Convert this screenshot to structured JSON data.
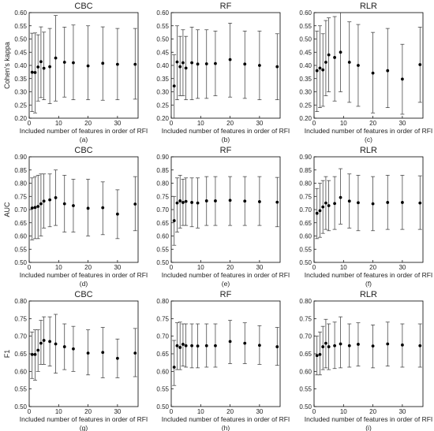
{
  "figure": {
    "panel_titles": [
      "CBC",
      "RF",
      "RLR"
    ],
    "xlabel": "Included number of features in order of RFI",
    "row_ylabels": [
      "Cohen's kappa",
      "AUC",
      "F1"
    ],
    "sublabels": [
      "(a)",
      "(b)",
      "(c)",
      "(d)",
      "(e)",
      "(f)",
      "(g)",
      "(h)",
      "(i)"
    ],
    "colors": {
      "marker": "#000000",
      "errorbar": "#333333",
      "axis": "#000000"
    }
  },
  "chart_data": [
    {
      "type": "scatter",
      "title": "CBC",
      "xlabel": "Included number of features in order of RFI",
      "ylabel": "Cohen's kappa",
      "sublabel": "(a)",
      "xlim": [
        0,
        37
      ],
      "ylim": [
        0.2,
        0.6
      ],
      "xticks": [
        0,
        10,
        20,
        30
      ],
      "xtick_labels": [
        "0",
        "10",
        "20",
        "30"
      ],
      "yticks": [
        0.2,
        0.25,
        0.3,
        0.35,
        0.4,
        0.45,
        0.5,
        0.55,
        0.6
      ],
      "ytick_labels": [
        "0.20",
        "0.25",
        "0.30",
        "0.35",
        "0.40",
        "0.45",
        "0.50",
        "0.55",
        "0.60"
      ],
      "x": [
        1,
        2,
        3,
        4,
        5,
        7,
        9,
        12,
        15,
        20,
        25,
        30,
        36
      ],
      "y": [
        0.374,
        0.373,
        0.394,
        0.414,
        0.389,
        0.395,
        0.428,
        0.412,
        0.41,
        0.398,
        0.408,
        0.404,
        0.404
      ],
      "lower": [
        0.225,
        0.22,
        0.265,
        0.278,
        0.27,
        0.255,
        0.265,
        0.28,
        0.27,
        0.27,
        0.268,
        0.27,
        0.272
      ],
      "upper": [
        0.522,
        0.523,
        0.516,
        0.546,
        0.526,
        0.54,
        0.589,
        0.545,
        0.553,
        0.55,
        0.546,
        0.54,
        0.54
      ]
    },
    {
      "type": "scatter",
      "title": "RF",
      "xlabel": "Included number of features in order of RFI",
      "ylabel": "",
      "sublabel": "(b)",
      "xlim": [
        0,
        37
      ],
      "ylim": [
        0.2,
        0.6
      ],
      "xticks": [
        0,
        10,
        20,
        30
      ],
      "xtick_labels": [
        "0",
        "10",
        "20",
        "30"
      ],
      "yticks": [
        0.2,
        0.25,
        0.3,
        0.35,
        0.4,
        0.45,
        0.5,
        0.55,
        0.6
      ],
      "ytick_labels": [
        "0.20",
        "0.25",
        "0.30",
        "0.35",
        "0.40",
        "0.45",
        "0.50",
        "0.55",
        "0.60"
      ],
      "x": [
        1,
        2,
        3,
        4,
        5,
        7,
        9,
        12,
        15,
        20,
        25,
        30,
        36
      ],
      "y": [
        0.322,
        0.413,
        0.395,
        0.41,
        0.39,
        0.41,
        0.405,
        0.406,
        0.407,
        0.422,
        0.405,
        0.4,
        0.395
      ],
      "lower": [
        0.2,
        0.27,
        0.285,
        0.285,
        0.27,
        0.27,
        0.275,
        0.275,
        0.285,
        0.28,
        0.275,
        0.27,
        0.27
      ],
      "upper": [
        0.44,
        0.55,
        0.51,
        0.535,
        0.51,
        0.545,
        0.535,
        0.535,
        0.53,
        0.56,
        0.53,
        0.53,
        0.52
      ]
    },
    {
      "type": "scatter",
      "title": "RLR",
      "xlabel": "Included number of features in order of RFI",
      "ylabel": "",
      "sublabel": "(c)",
      "xlim": [
        0,
        37
      ],
      "ylim": [
        0.2,
        0.6
      ],
      "xticks": [
        0,
        10,
        20,
        30
      ],
      "xtick_labels": [
        "0",
        "10",
        "20",
        "30"
      ],
      "yticks": [
        0.2,
        0.25,
        0.3,
        0.35,
        0.4,
        0.45,
        0.5,
        0.55,
        0.6
      ],
      "ytick_labels": [
        "0.20",
        "0.25",
        "0.30",
        "0.35",
        "0.40",
        "0.45",
        "0.50",
        "0.55",
        "0.60"
      ],
      "x": [
        1,
        2,
        3,
        4,
        5,
        7,
        9,
        12,
        15,
        20,
        25,
        30,
        36
      ],
      "y": [
        0.38,
        0.39,
        0.383,
        0.412,
        0.44,
        0.43,
        0.45,
        0.412,
        0.4,
        0.371,
        0.38,
        0.348,
        0.403
      ],
      "lower": [
        0.225,
        0.24,
        0.245,
        0.285,
        0.3,
        0.265,
        0.3,
        0.26,
        0.245,
        0.22,
        0.24,
        0.215,
        0.26
      ],
      "upper": [
        0.53,
        0.55,
        0.52,
        0.57,
        0.58,
        0.585,
        0.6,
        0.565,
        0.555,
        0.525,
        0.54,
        0.48,
        0.545
      ]
    },
    {
      "type": "scatter",
      "title": "CBC",
      "xlabel": "Included number of features in order of RFI",
      "ylabel": "AUC",
      "sublabel": "(d)",
      "xlim": [
        0,
        37
      ],
      "ylim": [
        0.5,
        0.9
      ],
      "xticks": [
        0,
        10,
        20,
        30
      ],
      "xtick_labels": [
        "0",
        "10",
        "20",
        "30"
      ],
      "yticks": [
        0.5,
        0.55,
        0.6,
        0.65,
        0.7,
        0.75,
        0.8,
        0.85,
        0.9
      ],
      "ytick_labels": [
        "0.50",
        "0.55",
        "0.60",
        "0.65",
        "0.70",
        "0.75",
        "0.80",
        "0.85",
        "0.90"
      ],
      "x": [
        1,
        2,
        3,
        4,
        5,
        7,
        9,
        12,
        15,
        20,
        25,
        30,
        36
      ],
      "y": [
        0.706,
        0.708,
        0.712,
        0.722,
        0.732,
        0.737,
        0.745,
        0.722,
        0.715,
        0.705,
        0.707,
        0.683,
        0.721
      ],
      "lower": [
        0.585,
        0.59,
        0.59,
        0.6,
        0.63,
        0.635,
        0.64,
        0.615,
        0.615,
        0.6,
        0.605,
        0.59,
        0.62
      ],
      "upper": [
        0.82,
        0.825,
        0.83,
        0.835,
        0.835,
        0.835,
        0.85,
        0.83,
        0.815,
        0.815,
        0.805,
        0.775,
        0.825
      ]
    },
    {
      "type": "scatter",
      "title": "RF",
      "xlabel": "Included number of features in order of RFI",
      "ylabel": "",
      "sublabel": "(e)",
      "xlim": [
        0,
        37
      ],
      "ylim": [
        0.5,
        0.9
      ],
      "xticks": [
        0,
        10,
        20,
        30
      ],
      "xtick_labels": [
        "0",
        "10",
        "20",
        "30"
      ],
      "yticks": [
        0.5,
        0.55,
        0.6,
        0.65,
        0.7,
        0.75,
        0.8,
        0.85,
        0.9
      ],
      "ytick_labels": [
        "0.50",
        "0.55",
        "0.60",
        "0.65",
        "0.70",
        "0.75",
        "0.80",
        "0.85",
        "0.90"
      ],
      "x": [
        1,
        2,
        3,
        4,
        5,
        7,
        9,
        12,
        15,
        20,
        25,
        30,
        36
      ],
      "y": [
        0.658,
        0.725,
        0.733,
        0.727,
        0.731,
        0.727,
        0.725,
        0.733,
        0.733,
        0.735,
        0.732,
        0.73,
        0.728
      ],
      "lower": [
        0.565,
        0.615,
        0.63,
        0.64,
        0.64,
        0.635,
        0.63,
        0.64,
        0.64,
        0.64,
        0.64,
        0.64,
        0.635
      ],
      "upper": [
        0.75,
        0.82,
        0.83,
        0.815,
        0.82,
        0.82,
        0.82,
        0.825,
        0.825,
        0.825,
        0.825,
        0.825,
        0.822
      ]
    },
    {
      "type": "scatter",
      "title": "RLR",
      "xlabel": "Included number of features in order of RFI",
      "ylabel": "",
      "sublabel": "(f)",
      "xlim": [
        0,
        37
      ],
      "ylim": [
        0.5,
        0.9
      ],
      "xticks": [
        0,
        10,
        20,
        30
      ],
      "xtick_labels": [
        "0",
        "10",
        "20",
        "30"
      ],
      "yticks": [
        0.5,
        0.55,
        0.6,
        0.65,
        0.7,
        0.75,
        0.8,
        0.85,
        0.9
      ],
      "ytick_labels": [
        "0.50",
        "0.55",
        "0.60",
        "0.65",
        "0.70",
        "0.75",
        "0.80",
        "0.85",
        "0.90"
      ],
      "x": [
        1,
        2,
        3,
        4,
        5,
        7,
        9,
        12,
        15,
        20,
        25,
        30,
        36
      ],
      "y": [
        0.686,
        0.696,
        0.71,
        0.725,
        0.715,
        0.723,
        0.746,
        0.732,
        0.726,
        0.722,
        0.727,
        0.727,
        0.725
      ],
      "lower": [
        0.59,
        0.595,
        0.61,
        0.625,
        0.62,
        0.625,
        0.645,
        0.63,
        0.62,
        0.62,
        0.625,
        0.625,
        0.625
      ],
      "upper": [
        0.78,
        0.8,
        0.81,
        0.825,
        0.81,
        0.825,
        0.855,
        0.835,
        0.83,
        0.825,
        0.83,
        0.83,
        0.828
      ]
    },
    {
      "type": "scatter",
      "title": "CBC",
      "xlabel": "Included number of features in order of RFI",
      "ylabel": "F1",
      "sublabel": "(g)",
      "xlim": [
        0,
        37
      ],
      "ylim": [
        0.5,
        0.8
      ],
      "xticks": [
        0,
        10,
        20,
        30
      ],
      "xtick_labels": [
        "0",
        "10",
        "20",
        "30"
      ],
      "yticks": [
        0.5,
        0.55,
        0.6,
        0.65,
        0.7,
        0.75,
        0.8
      ],
      "ytick_labels": [
        "0.50",
        "0.55",
        "0.60",
        "0.65",
        "0.70",
        "0.75",
        "0.80"
      ],
      "x": [
        1,
        2,
        3,
        4,
        5,
        7,
        9,
        12,
        15,
        20,
        25,
        30,
        36
      ],
      "y": [
        0.648,
        0.648,
        0.66,
        0.68,
        0.688,
        0.685,
        0.678,
        0.67,
        0.664,
        0.652,
        0.654,
        0.637,
        0.652
      ],
      "lower": [
        0.58,
        0.575,
        0.6,
        0.62,
        0.62,
        0.615,
        0.595,
        0.605,
        0.6,
        0.59,
        0.582,
        0.582,
        0.585
      ],
      "upper": [
        0.712,
        0.718,
        0.718,
        0.745,
        0.755,
        0.755,
        0.762,
        0.735,
        0.728,
        0.718,
        0.725,
        0.692,
        0.722
      ]
    },
    {
      "type": "scatter",
      "title": "RF",
      "xlabel": "Included number of features in order of RFI",
      "ylabel": "",
      "sublabel": "(h)",
      "xlim": [
        0,
        37
      ],
      "ylim": [
        0.5,
        0.8
      ],
      "xticks": [
        0,
        10,
        20,
        30
      ],
      "xtick_labels": [
        "0",
        "10",
        "20",
        "30"
      ],
      "yticks": [
        0.5,
        0.55,
        0.6,
        0.65,
        0.7,
        0.75,
        0.8
      ],
      "ytick_labels": [
        "0.50",
        "0.55",
        "0.60",
        "0.65",
        "0.70",
        "0.75",
        "0.80"
      ],
      "x": [
        1,
        2,
        3,
        4,
        5,
        7,
        9,
        12,
        15,
        20,
        25,
        30,
        36
      ],
      "y": [
        0.612,
        0.673,
        0.668,
        0.677,
        0.673,
        0.673,
        0.672,
        0.673,
        0.673,
        0.685,
        0.68,
        0.674,
        0.67
      ],
      "lower": [
        0.56,
        0.605,
        0.605,
        0.615,
        0.612,
        0.61,
        0.61,
        0.612,
        0.612,
        0.622,
        0.622,
        0.62,
        0.617
      ],
      "upper": [
        0.688,
        0.738,
        0.74,
        0.735,
        0.735,
        0.735,
        0.735,
        0.735,
        0.735,
        0.745,
        0.738,
        0.73,
        0.725
      ]
    },
    {
      "type": "scatter",
      "title": "RLR",
      "xlabel": "Included number of features in order of RFI",
      "ylabel": "",
      "sublabel": "(i)",
      "xlim": [
        0,
        37
      ],
      "ylim": [
        0.5,
        0.8
      ],
      "xticks": [
        0,
        10,
        20,
        30
      ],
      "xtick_labels": [
        "0",
        "10",
        "20",
        "30"
      ],
      "yticks": [
        0.5,
        0.55,
        0.6,
        0.65,
        0.7,
        0.75,
        0.8
      ],
      "ytick_labels": [
        "0.50",
        "0.55",
        "0.60",
        "0.65",
        "0.70",
        "0.75",
        "0.80"
      ],
      "x": [
        1,
        2,
        3,
        4,
        5,
        7,
        9,
        12,
        15,
        20,
        25,
        30,
        36
      ],
      "y": [
        0.645,
        0.648,
        0.67,
        0.68,
        0.67,
        0.673,
        0.678,
        0.673,
        0.677,
        0.672,
        0.678,
        0.675,
        0.673
      ],
      "lower": [
        0.59,
        0.59,
        0.605,
        0.61,
        0.605,
        0.608,
        0.61,
        0.612,
        0.615,
        0.61,
        0.615,
        0.612,
        0.612
      ],
      "upper": [
        0.7,
        0.712,
        0.728,
        0.748,
        0.735,
        0.74,
        0.755,
        0.735,
        0.738,
        0.732,
        0.74,
        0.735,
        0.735
      ]
    }
  ]
}
